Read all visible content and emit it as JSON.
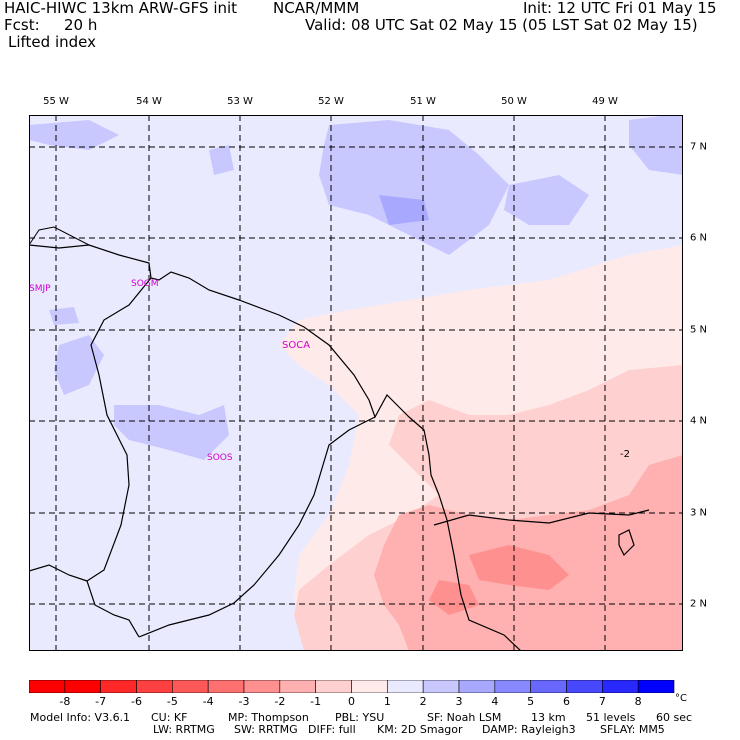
{
  "header": {
    "model": "HAIC-HIWC 13km ARW-GFS init",
    "org": "NCAR/MMM",
    "init": "Init: 12 UTC Fri 01 May 15",
    "fcst_label": "Fcst:",
    "fcst_value": "20 h",
    "valid": "Valid: 08 UTC Sat 02 May 15 (05 LST Sat 02 May 15)",
    "field": "Lifted index"
  },
  "map": {
    "lon_labels": [
      "55 W",
      "54 W",
      "53 W",
      "52 W",
      "51 W",
      "50 W",
      "49 W"
    ],
    "lat_labels": [
      "7 N",
      "6 N",
      "5 N",
      "4 N",
      "3 N",
      "2 N"
    ],
    "contour_label": "-2",
    "stations": [
      "SMJP",
      "SOGM",
      "SOCA",
      "SOOS"
    ]
  },
  "colorbar": {
    "ticks": [
      "-8",
      "-7",
      "-6",
      "-5",
      "-4",
      "-3",
      "-2",
      "-1",
      "0",
      "1",
      "2",
      "3",
      "4",
      "5",
      "6",
      "7",
      "8"
    ],
    "unit": "°C",
    "colors": [
      "#ff0000",
      "#ff2828",
      "#ff4040",
      "#ff5858",
      "#ff7070",
      "#ff9090",
      "#ffb0b0",
      "#ffd0d0",
      "#ffeaea",
      "#eaeaff",
      "#c8c8ff",
      "#a8a8ff",
      "#8888ff",
      "#6868ff",
      "#4848ff",
      "#2828ff",
      "#0000ff"
    ]
  },
  "footer": {
    "line1": [
      "Model Info: V3.6.1",
      "CU: KF",
      "MP: Thompson",
      "PBL: YSU",
      "SF: Noah LSM",
      "13 km",
      "51 levels",
      "60 sec"
    ],
    "line2": [
      "LW: RRTMG",
      "SW: RRTMG",
      "DIFF: full",
      "KM: 2D Smagor",
      "DAMP: Rayleigh3",
      "SFLAY: MM5"
    ]
  }
}
